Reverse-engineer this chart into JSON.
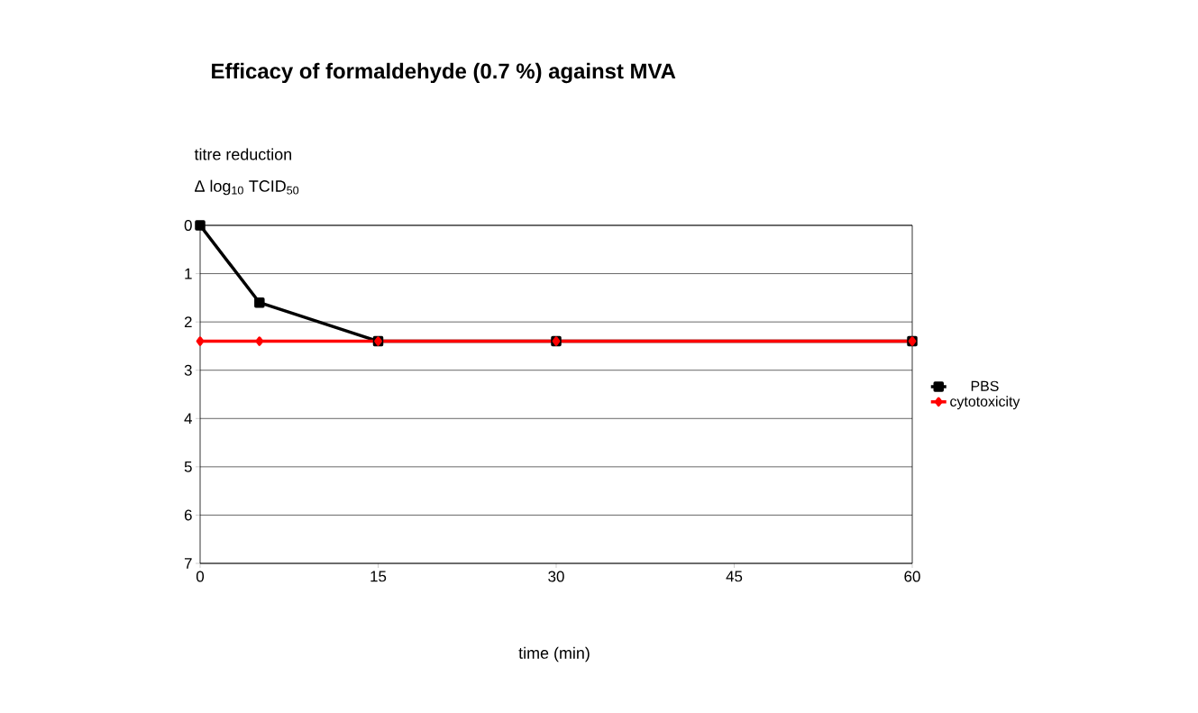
{
  "chart_data": {
    "type": "line",
    "title": "Efficacy of formaldehyde (0.7 %) against MVA",
    "xlabel": "time (min)",
    "ylabel": "titre reduction",
    "annotations": [
      "Δ log$_{10}$ TCID$_{50}$"
    ],
    "x": [
      0,
      5,
      15,
      30,
      60
    ],
    "series": [
      {
        "name": "PBS",
        "color": "#000000",
        "marker": "square",
        "values": [
          0,
          1.6,
          2.4,
          2.4,
          2.4
        ]
      },
      {
        "name": "cytotoxicity",
        "color": "#ff0000",
        "marker": "diamond",
        "values": [
          2.4,
          2.4,
          2.4,
          2.4,
          2.4
        ]
      }
    ],
    "xlim": [
      0,
      60
    ],
    "xticks": [
      0,
      15,
      30,
      45,
      60
    ],
    "ylim": [
      7,
      0
    ],
    "yticks": [
      0,
      1,
      2,
      3,
      4,
      5,
      6,
      7
    ],
    "grid": "y",
    "legend": "right"
  }
}
